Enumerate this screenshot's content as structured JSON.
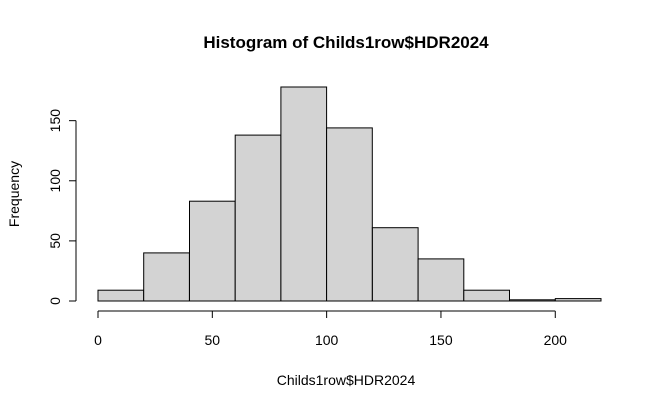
{
  "chart_data": {
    "type": "bar",
    "subtype": "histogram",
    "title": "Histogram of Childs1row$HDR2024",
    "xlabel": "Childs1row$HDR2024",
    "ylabel": "Frequency",
    "bins": [
      {
        "from": 0,
        "to": 20,
        "count": 9
      },
      {
        "from": 20,
        "to": 40,
        "count": 40
      },
      {
        "from": 40,
        "to": 60,
        "count": 83
      },
      {
        "from": 60,
        "to": 80,
        "count": 138
      },
      {
        "from": 80,
        "to": 100,
        "count": 178
      },
      {
        "from": 100,
        "to": 120,
        "count": 144
      },
      {
        "from": 120,
        "to": 140,
        "count": 61
      },
      {
        "from": 140,
        "to": 160,
        "count": 35
      },
      {
        "from": 160,
        "to": 180,
        "count": 9
      },
      {
        "from": 180,
        "to": 200,
        "count": 1
      },
      {
        "from": 200,
        "to": 220,
        "count": 2
      }
    ],
    "xlim": [
      0,
      220
    ],
    "ylim": [
      0,
      178
    ],
    "x_ticks": [
      0,
      50,
      100,
      150,
      200
    ],
    "y_ticks": [
      0,
      50,
      100,
      150
    ],
    "x_tick_labels": [
      "0",
      "50",
      "100",
      "150",
      "200"
    ],
    "y_tick_labels": [
      "0",
      "50",
      "100",
      "150"
    ],
    "bar_fill": "#d3d3d3",
    "bar_stroke": "#000000",
    "grid": false,
    "legend": "none"
  }
}
